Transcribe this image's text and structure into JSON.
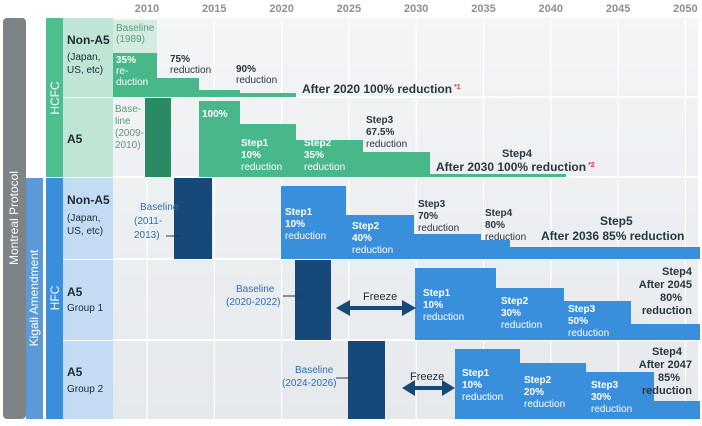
{
  "years": [
    "2010",
    "2015",
    "2020",
    "2025",
    "2030",
    "2035",
    "2040",
    "2045",
    "2050"
  ],
  "side_labels": {
    "montreal": "Montreal Protocol",
    "kigali": "Kigali Amendment",
    "hcfc": "HCFC",
    "hfc": "HFC"
  },
  "rows": {
    "hcfc_non_a5": {
      "title": "Non-A5",
      "subtitle_lines": [
        "(Japan,",
        "US, etc)"
      ]
    },
    "hcfc_a5": {
      "title": "A5"
    },
    "hfc_non_a5": {
      "title": "Non-A5",
      "subtitle_lines": [
        "(Japan,",
        "US, etc)"
      ]
    },
    "hfc_a5_g1": {
      "title": "A5",
      "subtitle": "Group 1"
    },
    "hfc_a5_g2": {
      "title": "A5",
      "subtitle": "Group 2"
    }
  },
  "hcfc_non_a5": {
    "baseline_lines": [
      "Baseline",
      "(1989)"
    ],
    "step_35_lines": [
      "35%",
      "re-",
      "duction"
    ],
    "step_75_lines": [
      "75%",
      "reduction"
    ],
    "step_90_lines": [
      "90%",
      "reduction"
    ],
    "final": "After 2020 100% reduction",
    "note": "*1"
  },
  "hcfc_a5": {
    "baseline_lines": [
      "Base-",
      "line",
      "(2009-",
      "2010)"
    ],
    "level_100": "100%",
    "step1_lines": [
      "Step1",
      "10%",
      "reduction"
    ],
    "step2_lines": [
      "Step2",
      "35%",
      "reduction"
    ],
    "step3_lines": [
      "Step3",
      "67.5%",
      "reduction"
    ],
    "step4": "Step4",
    "final": "After 2030 100% reduction",
    "note": "*2"
  },
  "hfc_non_a5": {
    "baseline_lines": [
      "Baseline",
      "(2011-",
      "2013)"
    ],
    "step1_lines": [
      "Step1",
      "10%",
      "reduction"
    ],
    "step2_lines": [
      "Step2",
      "40%",
      "reduction"
    ],
    "step3_lines": [
      "Step3",
      "70%",
      "reduction"
    ],
    "step4_lines": [
      "Step4",
      "80%",
      "reduction"
    ],
    "step5": "Step5",
    "final": "After 2036 85% reduction"
  },
  "hfc_a5_g1": {
    "baseline_lines": [
      "Baseline",
      "(2020-2022)"
    ],
    "freeze": "Freeze",
    "step1_lines": [
      "Step1",
      "10%",
      "reduction"
    ],
    "step2_lines": [
      "Step2",
      "30%",
      "reduction"
    ],
    "step3_lines": [
      "Step3",
      "50%",
      "reduction"
    ],
    "step4_lines": [
      "Step4",
      "After 2045",
      "80%",
      "reduction"
    ]
  },
  "hfc_a5_g2": {
    "baseline_lines": [
      "Baseline",
      "(2024-2026)"
    ],
    "freeze": "Freeze",
    "step1_lines": [
      "Step1",
      "10%",
      "reduction"
    ],
    "step2_lines": [
      "Step2",
      "20%",
      "reduction"
    ],
    "step3_lines": [
      "Step3",
      "30%",
      "reduction"
    ],
    "step4_lines": [
      "Step4",
      "After 2047",
      "85%",
      "reduction"
    ]
  },
  "colors": {
    "hcfc_green": "#48b88a",
    "hcfc_green_dark": "#2a8a63",
    "hfc_blue": "#3a8fdc",
    "hfc_blue_dark": "#17487a",
    "protocol_gray": "#7d8387",
    "hcfc_label_bg": "#bfe6d4",
    "hfc_label_bg": "#c3dcf3",
    "note_red": "#e03030"
  }
}
